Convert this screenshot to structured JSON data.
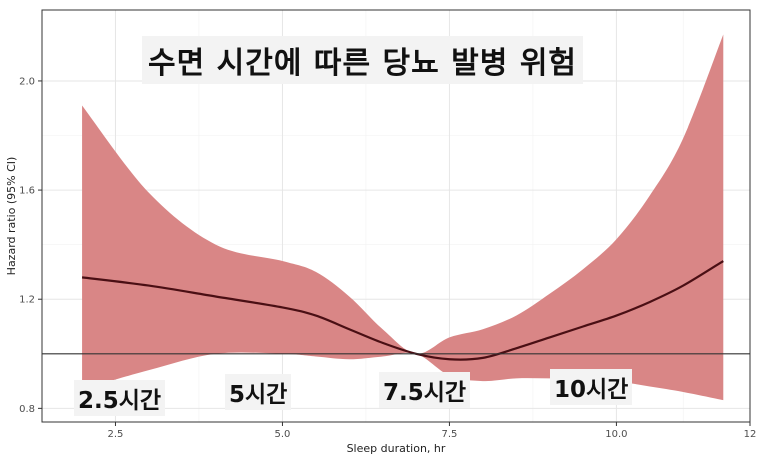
{
  "chart_data": {
    "type": "line",
    "title": "수면 시간에 따른 당뇨 발병 위험",
    "xlabel": "Sleep duration, hr",
    "ylabel": "Hazard ratio (95% CI)",
    "xlim": [
      1.4,
      12
    ],
    "ylim": [
      0.75,
      2.26
    ],
    "x_ticks": [
      "2.5",
      "5.0",
      "7.5",
      "10.0",
      "12"
    ],
    "x_tick_values": [
      2.5,
      5.0,
      7.5,
      10.0,
      12
    ],
    "y_ticks": [
      "0.8",
      "1.2",
      "1.6",
      "2.0"
    ],
    "y_tick_values": [
      0.8,
      1.2,
      1.6,
      2.0
    ],
    "reference_line": 1.0,
    "grid": true,
    "colors": {
      "ci_band": "#d98686",
      "line": "#4a0f14",
      "reference": "#333333"
    },
    "series": [
      {
        "x": [
          2.0,
          3.0,
          4.0,
          5.0,
          5.5,
          6.0,
          6.5,
          7.0,
          7.5,
          8.0,
          8.5,
          9.0,
          9.5,
          10.0,
          10.5,
          11.0,
          11.6
        ],
        "y": [
          1.28,
          1.25,
          1.21,
          1.17,
          1.14,
          1.09,
          1.04,
          1.0,
          0.98,
          0.985,
          1.02,
          1.06,
          1.1,
          1.14,
          1.19,
          1.25,
          1.34
        ],
        "lower": [
          0.87,
          0.94,
          1.0,
          1.0,
          0.99,
          0.98,
          0.99,
          1.0,
          0.92,
          0.9,
          0.91,
          0.91,
          0.91,
          0.9,
          0.88,
          0.86,
          0.83
        ],
        "upper": [
          1.91,
          1.59,
          1.4,
          1.34,
          1.3,
          1.21,
          1.09,
          1.0,
          1.06,
          1.09,
          1.14,
          1.22,
          1.31,
          1.42,
          1.58,
          1.79,
          2.17
        ]
      }
    ],
    "annotations": [
      "2.5시간",
      "5시간",
      "7.5시간",
      "10시간"
    ]
  }
}
